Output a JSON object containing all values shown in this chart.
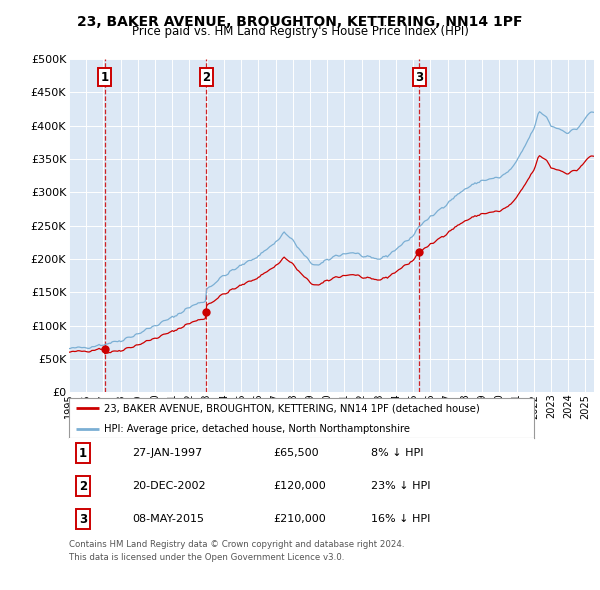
{
  "title": "23, BAKER AVENUE, BROUGHTON, KETTERING, NN14 1PF",
  "subtitle": "Price paid vs. HM Land Registry's House Price Index (HPI)",
  "legend_line1": "23, BAKER AVENUE, BROUGHTON, KETTERING, NN14 1PF (detached house)",
  "legend_line2": "HPI: Average price, detached house, North Northamptonshire",
  "footer1": "Contains HM Land Registry data © Crown copyright and database right 2024.",
  "footer2": "This data is licensed under the Open Government Licence v3.0.",
  "sales": [
    {
      "label": "1",
      "date": "27-JAN-1997",
      "price": 65500,
      "hpi_diff": "8% ↓ HPI",
      "x_year": 1997.07
    },
    {
      "label": "2",
      "date": "20-DEC-2002",
      "price": 120000,
      "hpi_diff": "23% ↓ HPI",
      "x_year": 2002.97
    },
    {
      "label": "3",
      "date": "08-MAY-2015",
      "price": 210000,
      "hpi_diff": "16% ↓ HPI",
      "x_year": 2015.35
    }
  ],
  "hpi_color": "#7bafd4",
  "price_color": "#cc0000",
  "dashed_color": "#cc0000",
  "background_chart": "#dce8f5",
  "background_fig": "#ffffff",
  "xlim": [
    1995.0,
    2025.5
  ],
  "ylim": [
    0,
    500000
  ],
  "yticks": [
    0,
    50000,
    100000,
    150000,
    200000,
    250000,
    300000,
    350000,
    400000,
    450000,
    500000
  ],
  "ytick_labels": [
    "£0",
    "£50K",
    "£100K",
    "£150K",
    "£200K",
    "£250K",
    "£300K",
    "£350K",
    "£400K",
    "£450K",
    "£500K"
  ],
  "xtick_years": [
    1995,
    1996,
    1997,
    1998,
    1999,
    2000,
    2001,
    2002,
    2003,
    2004,
    2005,
    2006,
    2007,
    2008,
    2009,
    2010,
    2011,
    2012,
    2013,
    2014,
    2015,
    2016,
    2017,
    2018,
    2019,
    2020,
    2021,
    2022,
    2023,
    2024,
    2025
  ]
}
